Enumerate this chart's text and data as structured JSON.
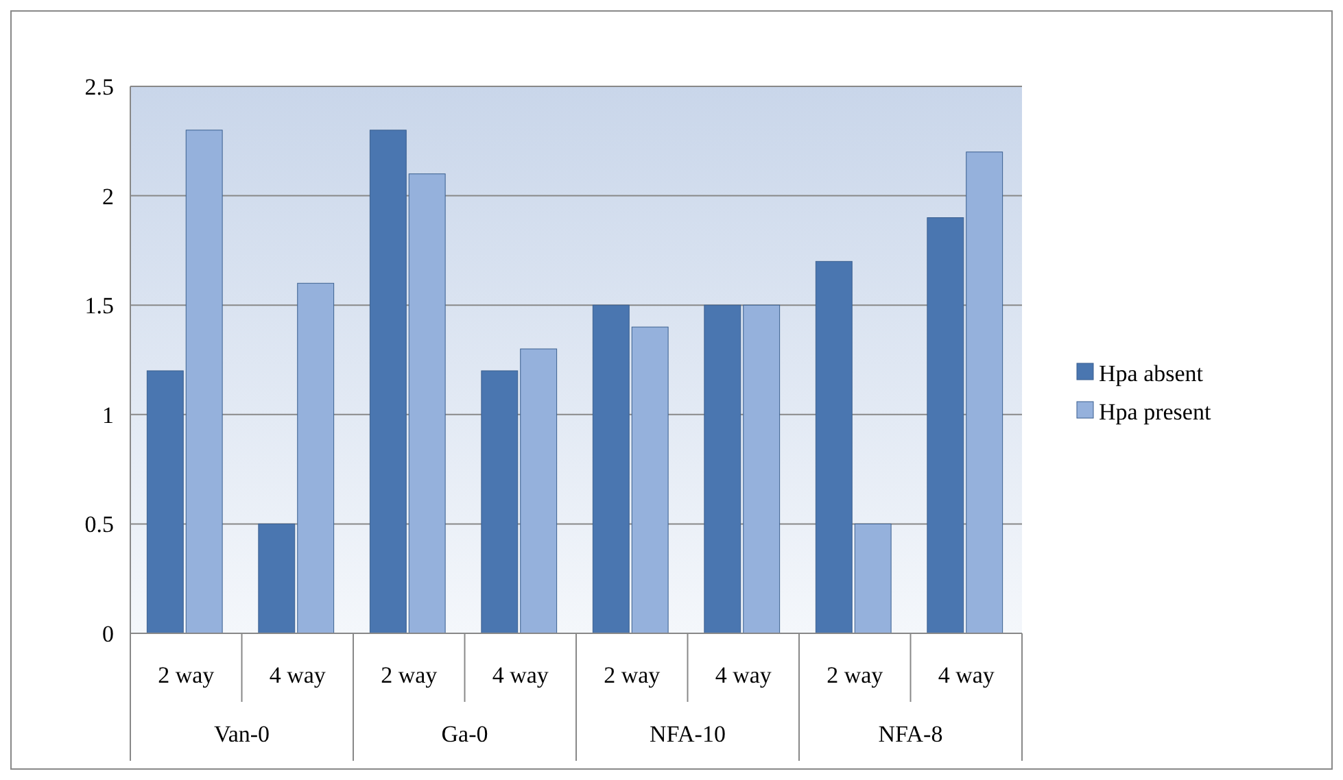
{
  "chart_data": {
    "type": "bar",
    "categories": [
      "2 way",
      "4 way",
      "2 way",
      "4 way",
      "2 way",
      "4 way",
      "2 way",
      "4 way"
    ],
    "series": [
      {
        "name": "Hpa absent",
        "color": "#4a76b0",
        "values": [
          1.2,
          0.5,
          2.3,
          1.2,
          1.5,
          1.5,
          1.7,
          1.9
        ]
      },
      {
        "name": "Hpa present",
        "color": "#95b1dc",
        "values": [
          2.3,
          1.6,
          2.1,
          1.3,
          1.4,
          1.5,
          0.5,
          2.2
        ]
      }
    ],
    "annotations": [
      "Van-0",
      "Ga-0",
      "NFA-10",
      "NFA-8"
    ],
    "ylim": [
      0,
      2.5
    ],
    "yticks": [
      0,
      0.5,
      1,
      1.5,
      2,
      2.5
    ],
    "grid": "y",
    "legend": "right"
  }
}
